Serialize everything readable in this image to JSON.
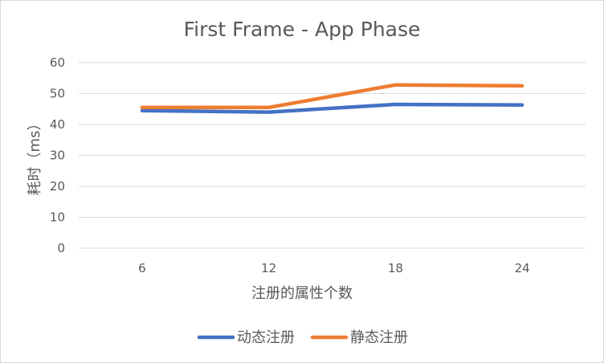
{
  "chart_data": {
    "type": "line",
    "title": "First Frame - App Phase",
    "xlabel": "注册的属性个数",
    "ylabel": "耗时（ms）",
    "categories": [
      "6",
      "12",
      "18",
      "24"
    ],
    "ylim": [
      0,
      60
    ],
    "yticks": [
      0,
      10,
      20,
      30,
      40,
      50,
      60
    ],
    "grid": true,
    "legend_position": "bottom",
    "series": [
      {
        "name": "动态注册",
        "color": "#4472c4",
        "values": [
          44.5,
          44.0,
          46.5,
          46.3
        ]
      },
      {
        "name": "静态注册",
        "color": "#ed7d31",
        "values": [
          45.5,
          45.5,
          52.8,
          52.5
        ]
      }
    ]
  }
}
